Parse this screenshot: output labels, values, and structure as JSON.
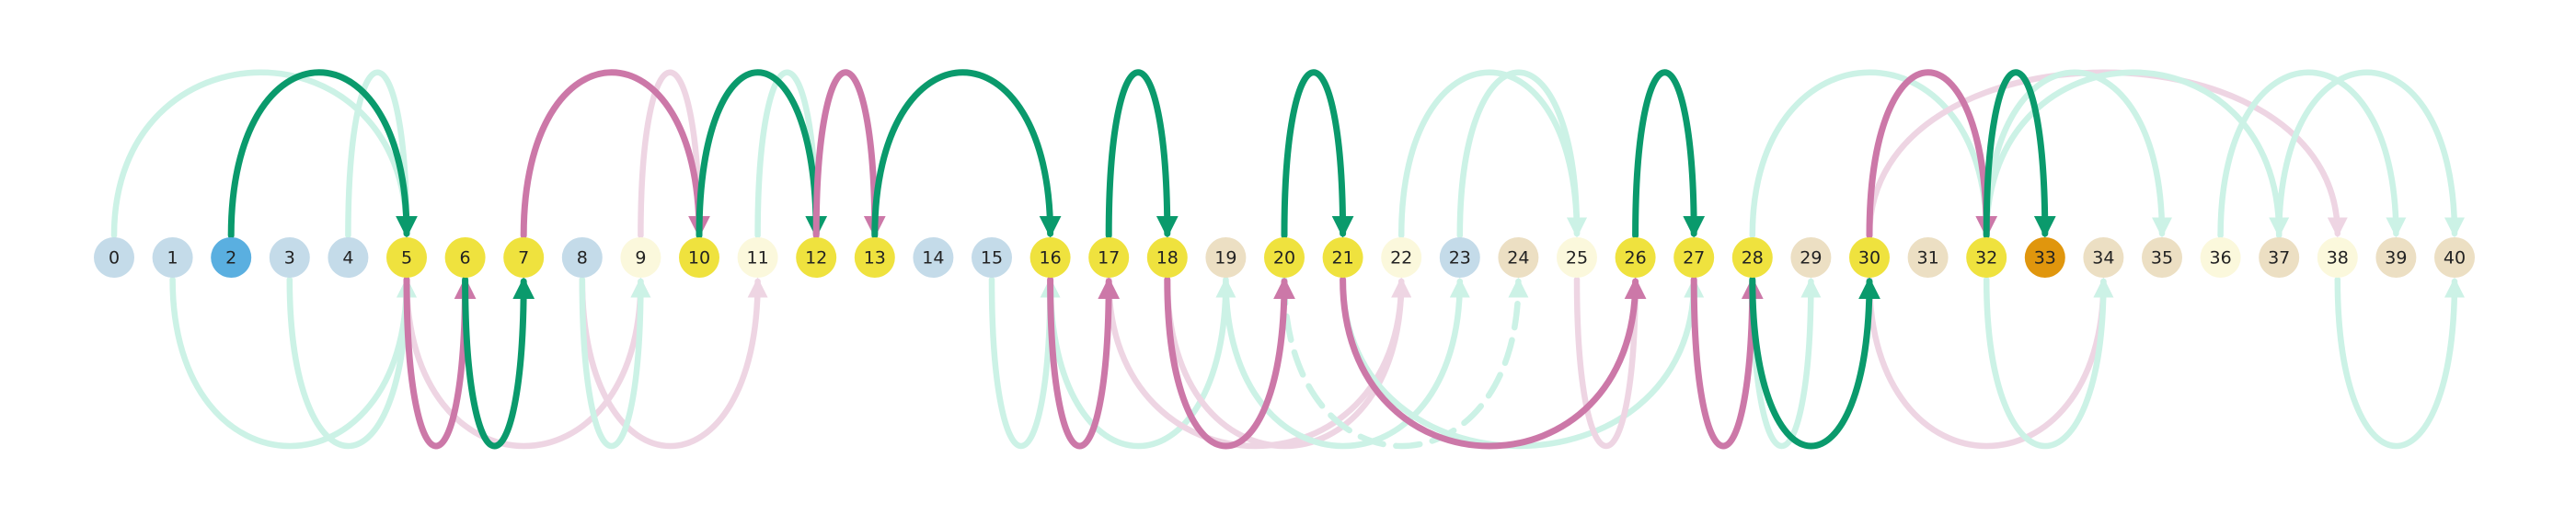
{
  "colors": {
    "node_default": "#c4dbe9",
    "node_start": "#5aafe0",
    "node_target": "#e0960d",
    "node_visited": "#efe23e",
    "node_frontier": "#fbf8dc",
    "node_other": "#ecdfc3",
    "edge_green_bold": "#0a9a6c",
    "edge_green_faint": "#ccf2e6",
    "edge_pink_bold": "#cc78a8",
    "edge_pink_faint": "#eed5e3"
  },
  "nodes": [
    {
      "label": "0",
      "kind": "default"
    },
    {
      "label": "1",
      "kind": "default"
    },
    {
      "label": "2",
      "kind": "start"
    },
    {
      "label": "3",
      "kind": "default"
    },
    {
      "label": "4",
      "kind": "default"
    },
    {
      "label": "5",
      "kind": "visited"
    },
    {
      "label": "6",
      "kind": "visited"
    },
    {
      "label": "7",
      "kind": "visited"
    },
    {
      "label": "8",
      "kind": "default"
    },
    {
      "label": "9",
      "kind": "frontier"
    },
    {
      "label": "10",
      "kind": "visited"
    },
    {
      "label": "11",
      "kind": "frontier"
    },
    {
      "label": "12",
      "kind": "visited"
    },
    {
      "label": "13",
      "kind": "visited"
    },
    {
      "label": "14",
      "kind": "default"
    },
    {
      "label": "15",
      "kind": "default"
    },
    {
      "label": "16",
      "kind": "visited"
    },
    {
      "label": "17",
      "kind": "visited"
    },
    {
      "label": "18",
      "kind": "visited"
    },
    {
      "label": "19",
      "kind": "other"
    },
    {
      "label": "20",
      "kind": "visited"
    },
    {
      "label": "21",
      "kind": "visited"
    },
    {
      "label": "22",
      "kind": "frontier"
    },
    {
      "label": "23",
      "kind": "default"
    },
    {
      "label": "24",
      "kind": "other"
    },
    {
      "label": "25",
      "kind": "frontier"
    },
    {
      "label": "26",
      "kind": "visited"
    },
    {
      "label": "27",
      "kind": "visited"
    },
    {
      "label": "28",
      "kind": "visited"
    },
    {
      "label": "29",
      "kind": "other"
    },
    {
      "label": "30",
      "kind": "visited"
    },
    {
      "label": "31",
      "kind": "other"
    },
    {
      "label": "32",
      "kind": "visited"
    },
    {
      "label": "33",
      "kind": "target"
    },
    {
      "label": "34",
      "kind": "other"
    },
    {
      "label": "35",
      "kind": "other"
    },
    {
      "label": "36",
      "kind": "frontier"
    },
    {
      "label": "37",
      "kind": "other"
    },
    {
      "label": "38",
      "kind": "frontier"
    },
    {
      "label": "39",
      "kind": "other"
    },
    {
      "label": "40",
      "kind": "other"
    }
  ],
  "edges": [
    {
      "from": 0,
      "to": 5,
      "side": "above",
      "style": "green_faint"
    },
    {
      "from": 4,
      "to": 5,
      "side": "above",
      "style": "green_faint"
    },
    {
      "from": 1,
      "to": 5,
      "side": "below",
      "style": "green_faint"
    },
    {
      "from": 3,
      "to": 5,
      "side": "below",
      "style": "green_faint"
    },
    {
      "from": 5,
      "to": 9,
      "side": "below",
      "style": "pink_faint"
    },
    {
      "from": 8,
      "to": 11,
      "side": "below",
      "style": "pink_faint"
    },
    {
      "from": 8,
      "to": 9,
      "side": "below",
      "style": "green_faint"
    },
    {
      "from": 9,
      "to": 10,
      "side": "above",
      "style": "pink_faint"
    },
    {
      "from": 11,
      "to": 12,
      "side": "above",
      "style": "green_faint"
    },
    {
      "from": 13,
      "to": 16,
      "side": "above",
      "style": "green_faint"
    },
    {
      "from": 15,
      "to": 16,
      "side": "below",
      "style": "green_faint"
    },
    {
      "from": 16,
      "to": 19,
      "side": "below",
      "style": "green_faint"
    },
    {
      "from": 17,
      "to": 22,
      "side": "below",
      "style": "pink_faint"
    },
    {
      "from": 18,
      "to": 22,
      "side": "below",
      "style": "pink_faint"
    },
    {
      "from": 19,
      "to": 23,
      "side": "below",
      "style": "green_faint"
    },
    {
      "from": 20,
      "to": 24,
      "side": "below",
      "style": "green_faint",
      "dashed": true
    },
    {
      "from": 21,
      "to": 27,
      "side": "below",
      "style": "green_faint"
    },
    {
      "from": 22,
      "to": 25,
      "side": "above",
      "style": "green_faint"
    },
    {
      "from": 23,
      "to": 25,
      "side": "above",
      "style": "green_faint"
    },
    {
      "from": 25,
      "to": 26,
      "side": "below",
      "style": "pink_faint"
    },
    {
      "from": 28,
      "to": 29,
      "side": "below",
      "style": "green_faint"
    },
    {
      "from": 28,
      "to": 32,
      "side": "above",
      "style": "green_faint"
    },
    {
      "from": 30,
      "to": 38,
      "side": "above",
      "style": "pink_faint"
    },
    {
      "from": 30,
      "to": 34,
      "side": "below",
      "style": "pink_faint"
    },
    {
      "from": 32,
      "to": 35,
      "side": "above",
      "style": "green_faint"
    },
    {
      "from": 32,
      "to": 37,
      "side": "above",
      "style": "green_faint"
    },
    {
      "from": 32,
      "to": 34,
      "side": "below",
      "style": "green_faint"
    },
    {
      "from": 36,
      "to": 39,
      "side": "above",
      "style": "green_faint"
    },
    {
      "from": 37,
      "to": 40,
      "side": "above",
      "style": "green_faint"
    },
    {
      "from": 38,
      "to": 40,
      "side": "below",
      "style": "green_faint"
    },
    {
      "from": 2,
      "to": 5,
      "side": "above",
      "style": "green_bold"
    },
    {
      "from": 5,
      "to": 6,
      "side": "below",
      "style": "pink_bold"
    },
    {
      "from": 6,
      "to": 7,
      "side": "below",
      "style": "green_bold"
    },
    {
      "from": 7,
      "to": 10,
      "side": "above",
      "style": "pink_bold"
    },
    {
      "from": 10,
      "to": 12,
      "side": "above",
      "style": "green_bold"
    },
    {
      "from": 12,
      "to": 13,
      "side": "above",
      "style": "pink_bold"
    },
    {
      "from": 13,
      "to": 16,
      "side": "above",
      "style": "green_bold"
    },
    {
      "from": 16,
      "to": 17,
      "side": "below",
      "style": "pink_bold"
    },
    {
      "from": 17,
      "to": 18,
      "side": "above",
      "style": "green_bold"
    },
    {
      "from": 18,
      "to": 20,
      "side": "below",
      "style": "pink_bold"
    },
    {
      "from": 20,
      "to": 21,
      "side": "above",
      "style": "green_bold"
    },
    {
      "from": 21,
      "to": 26,
      "side": "below",
      "style": "pink_bold"
    },
    {
      "from": 26,
      "to": 27,
      "side": "above",
      "style": "green_bold"
    },
    {
      "from": 27,
      "to": 28,
      "side": "below",
      "style": "pink_bold"
    },
    {
      "from": 28,
      "to": 30,
      "side": "below",
      "style": "green_bold"
    },
    {
      "from": 30,
      "to": 32,
      "side": "above",
      "style": "pink_bold"
    },
    {
      "from": 32,
      "to": 33,
      "side": "above",
      "style": "green_bold"
    }
  ]
}
